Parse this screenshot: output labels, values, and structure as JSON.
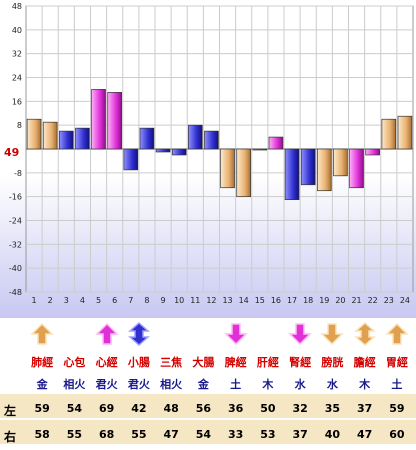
{
  "chart_data": {
    "type": "bar",
    "series": [
      {
        "values": [
          10,
          9,
          6,
          7,
          20,
          19,
          -7,
          7,
          -1,
          -2,
          8,
          6,
          -13,
          -16,
          0,
          4,
          -17,
          -12,
          -14,
          -9,
          -13,
          -2,
          10,
          11
        ]
      }
    ],
    "categories": [
      "1",
      "2",
      "3",
      "4",
      "5",
      "6",
      "7",
      "8",
      "9",
      "10",
      "11",
      "12",
      "13",
      "14",
      "15",
      "16",
      "17",
      "18",
      "19",
      "20",
      "21",
      "22",
      "23",
      "24"
    ],
    "yticks": [
      "48",
      "40",
      "32",
      "24",
      "16",
      "8",
      "-8",
      "-16",
      "-24",
      "-32",
      "-40",
      "-48"
    ],
    "ylim": [
      -48,
      48
    ],
    "reference_value": "49",
    "grid": true
  },
  "colors": {
    "orange": "#f0c890",
    "magenta": "#e838e0",
    "blue": "#3838d0"
  },
  "meridians": [
    {
      "organ": "肺經",
      "element": "金",
      "arrow": "up",
      "color": "orange",
      "left": "59",
      "right": "58"
    },
    {
      "organ": "心包",
      "element": "相火",
      "arrow": "none",
      "color": "none",
      "left": "54",
      "right": "55"
    },
    {
      "organ": "心經",
      "element": "君火",
      "arrow": "up",
      "color": "magenta",
      "left": "69",
      "right": "68"
    },
    {
      "organ": "小腸",
      "element": "君火",
      "arrow": "both",
      "color": "blue",
      "left": "42",
      "right": "55"
    },
    {
      "organ": "三焦",
      "element": "相火",
      "arrow": "none",
      "color": "none",
      "left": "48",
      "right": "47"
    },
    {
      "organ": "大腸",
      "element": "金",
      "arrow": "none",
      "color": "none",
      "left": "56",
      "right": "54"
    },
    {
      "organ": "脾經",
      "element": "土",
      "arrow": "down",
      "color": "magenta",
      "left": "36",
      "right": "33"
    },
    {
      "organ": "肝經",
      "element": "木",
      "arrow": "none",
      "color": "none",
      "left": "50",
      "right": "53"
    },
    {
      "organ": "腎經",
      "element": "水",
      "arrow": "down",
      "color": "magenta",
      "left": "32",
      "right": "37"
    },
    {
      "organ": "膀胱",
      "element": "水",
      "arrow": "down",
      "color": "orange",
      "left": "35",
      "right": "40"
    },
    {
      "organ": "膽經",
      "element": "木",
      "arrow": "both",
      "color": "orange",
      "left": "37",
      "right": "47"
    },
    {
      "organ": "胃經",
      "element": "土",
      "arrow": "up",
      "color": "orange",
      "left": "59",
      "right": "60"
    }
  ],
  "row_labels": {
    "left": "左",
    "right": "右"
  }
}
